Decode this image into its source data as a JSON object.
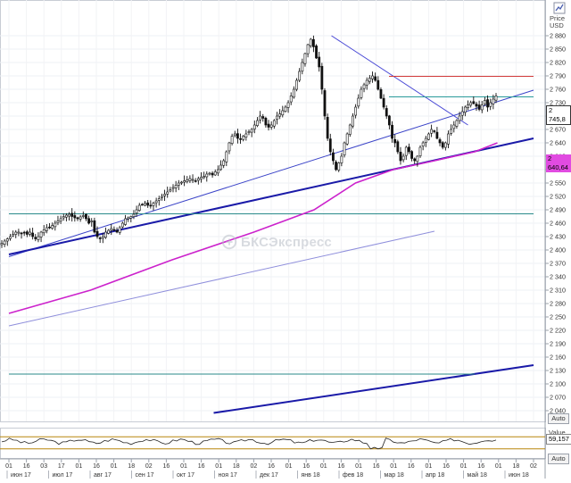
{
  "app": {
    "watermark": "БКСЭкспресс",
    "header_price": "Price",
    "header_currency": "USD",
    "auto_label": "Auto",
    "value_label": "Value",
    "last_price_tag": "2 745,8",
    "ma_tag": "2 640,64",
    "indicator_tag": "59,157"
  },
  "chart_data": [
    {
      "type": "candlestick",
      "title": "",
      "ylabel": "Price USD",
      "ylim": [
        2020,
        2900
      ],
      "y_ticks": [
        2040,
        2070,
        2100,
        2130,
        2160,
        2190,
        2220,
        2250,
        2280,
        2310,
        2340,
        2370,
        2400,
        2430,
        2460,
        2490,
        2520,
        2550,
        2580,
        2610,
        2640,
        2670,
        2700,
        2730,
        2760,
        2790,
        2820,
        2850,
        2880
      ],
      "x_day_labels": [
        "01",
        "16",
        "03",
        "17",
        "01",
        "16",
        "01",
        "18",
        "02",
        "16",
        "01",
        "16",
        "01",
        "18",
        "02",
        "16",
        "01",
        "16",
        "01",
        "16",
        "01",
        "16",
        "01",
        "16",
        "01",
        "16",
        "01",
        "16",
        "01",
        "18",
        "02"
      ],
      "x_month_labels": [
        "июн 17",
        "июл 17",
        "авг 17",
        "сен 17",
        "окт 17",
        "ноя 17",
        "дек 17",
        "янв 18",
        "фев 18",
        "мар 18",
        "апр 18",
        "май 18",
        "июн 18"
      ],
      "close": [
        2415,
        2420,
        2425,
        2430,
        2435,
        2440,
        2440,
        2437,
        2438,
        2435,
        2440,
        2430,
        2425,
        2430,
        2440,
        2445,
        2450,
        2450,
        2455,
        2460,
        2465,
        2470,
        2475,
        2478,
        2480,
        2475,
        2472,
        2470,
        2474,
        2477,
        2470,
        2460,
        2465,
        2440,
        2430,
        2425,
        2430,
        2440,
        2444,
        2448,
        2445,
        2440,
        2450,
        2460,
        2470,
        2472,
        2475,
        2480,
        2490,
        2500,
        2502,
        2505,
        2500,
        2500,
        2505,
        2510,
        2515,
        2520,
        2525,
        2530,
        2535,
        2540,
        2545,
        2550,
        2552,
        2555,
        2557,
        2560,
        2558,
        2555,
        2560,
        2563,
        2565,
        2570,
        2572,
        2568,
        2575,
        2580,
        2590,
        2600,
        2620,
        2640,
        2655,
        2660,
        2650,
        2648,
        2655,
        2660,
        2665,
        2670,
        2680,
        2690,
        2700,
        2695,
        2680,
        2675,
        2680,
        2690,
        2700,
        2705,
        2712,
        2720,
        2730,
        2745,
        2760,
        2780,
        2800,
        2820,
        2840,
        2860,
        2872,
        2855,
        2830,
        2810,
        2760,
        2700,
        2650,
        2620,
        2600,
        2580,
        2595,
        2610,
        2640,
        2660,
        2680,
        2700,
        2720,
        2740,
        2760,
        2770,
        2780,
        2785,
        2790,
        2780,
        2760,
        2740,
        2720,
        2700,
        2680,
        2650,
        2640,
        2620,
        2600,
        2610,
        2630,
        2620,
        2605,
        2600,
        2610,
        2630,
        2640,
        2650,
        2660,
        2670,
        2665,
        2650,
        2640,
        2630,
        2640,
        2660,
        2670,
        2680,
        2690,
        2700,
        2710,
        2720,
        2725,
        2730,
        2728,
        2722,
        2715,
        2725,
        2735,
        2720,
        2730,
        2738,
        2745
      ],
      "lines": [
        {
          "name": "",
          "color": "#3b44c8",
          "from": [
            "2017-06-01",
            2385
          ],
          "to": [
            "2018-06-28",
            2758
          ]
        },
        {
          "name": "",
          "color": "#1a1aa8",
          "from": [
            "2017-06-01",
            2390
          ],
          "to": [
            "2018-06-28",
            2650
          ]
        },
        {
          "name": "",
          "color": "#1a1aa8",
          "from": [
            "2017-11-01",
            2035
          ],
          "to": [
            "2018-06-28",
            2142
          ]
        },
        {
          "name": "",
          "color": "#8f8fdc",
          "from": [
            "2017-06-01",
            2230
          ],
          "to": [
            "2018-04-15",
            2442
          ]
        },
        {
          "name": "",
          "color": "#4b4bd6",
          "from": [
            "2018-01-28",
            2880
          ],
          "to": [
            "2018-05-10",
            2680
          ]
        },
        {
          "name": "",
          "color": "#d13a3a",
          "from": [
            "2018-03-12",
            2789
          ],
          "to": [
            "2018-06-28",
            2789
          ]
        },
        {
          "name": "",
          "color": "#2a9a9a",
          "from": [
            "2018-03-12",
            2743
          ],
          "to": [
            "2018-06-28",
            2743
          ]
        },
        {
          "name": "",
          "color": "#2a8a8a",
          "from": [
            "2017-06-01",
            2481
          ],
          "to": [
            "2018-06-28",
            2481
          ]
        },
        {
          "name": "",
          "color": "#2a8a8a",
          "from": [
            "2017-06-01",
            2122
          ],
          "to": [
            "2018-05-15",
            2122
          ]
        }
      ],
      "moving_average": {
        "name": "",
        "color": "#cc22cc",
        "values_at": [
          [
            "2017-06-01",
            2258
          ],
          [
            "2017-08-01",
            2310
          ],
          [
            "2017-10-01",
            2378
          ],
          [
            "2017-12-01",
            2440
          ],
          [
            "2018-01-15",
            2490
          ],
          [
            "2018-02-15",
            2550
          ],
          [
            "2018-03-15",
            2580
          ],
          [
            "2018-04-15",
            2600
          ],
          [
            "2018-05-15",
            2620
          ],
          [
            "2018-06-01",
            2640
          ]
        ]
      },
      "grid": true,
      "legend": "none"
    },
    {
      "type": "line",
      "title": "",
      "ylabel": "Value",
      "ylim": [
        0,
        100
      ],
      "reference_levels": [
        70,
        30
      ],
      "last_value": 59.157
    }
  ]
}
